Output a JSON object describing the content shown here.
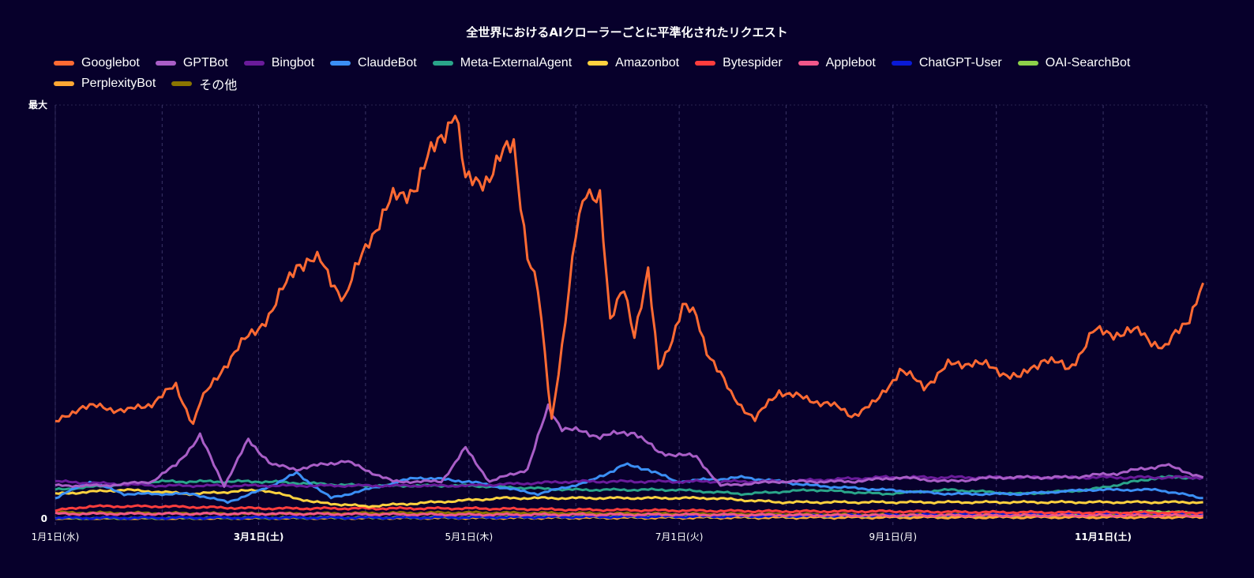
{
  "chart_data": {
    "type": "line",
    "title": "全世界におけるAIクローラーごとに平準化されたリクエスト",
    "xlabel": "",
    "ylabel": "",
    "x_unit": "day of year (0 = 1月1日)",
    "xlim": [
      0,
      334
    ],
    "ylim": [
      0,
      100
    ],
    "y_ticks": [
      {
        "value": 0,
        "label": "0"
      },
      {
        "value": 100,
        "label": "最大"
      }
    ],
    "x_ticks": [
      {
        "day": 0,
        "label": "1月1日(水)",
        "bold": false
      },
      {
        "day": 59,
        "label": "3月1日(土)",
        "bold": true
      },
      {
        "day": 120,
        "label": "5月1日(木)",
        "bold": false
      },
      {
        "day": 181,
        "label": "7月1日(火)",
        "bold": false
      },
      {
        "day": 243,
        "label": "9月1日(月)",
        "bold": false
      },
      {
        "day": 304,
        "label": "11月1日(土)",
        "bold": true
      }
    ],
    "minor_grid_days": [
      31,
      90,
      151,
      212,
      273,
      334
    ],
    "legend_position": "top-left",
    "series": [
      {
        "name": "Googlebot",
        "color": "#ff6a33",
        "points": [
          [
            0,
            23
          ],
          [
            7,
            27
          ],
          [
            14,
            27
          ],
          [
            21,
            26
          ],
          [
            28,
            28
          ],
          [
            35,
            32
          ],
          [
            40,
            23
          ],
          [
            42,
            28
          ],
          [
            49,
            37
          ],
          [
            56,
            44
          ],
          [
            63,
            50
          ],
          [
            70,
            62
          ],
          [
            77,
            62
          ],
          [
            84,
            53
          ],
          [
            91,
            68
          ],
          [
            98,
            77
          ],
          [
            105,
            81
          ],
          [
            112,
            93
          ],
          [
            116,
            99
          ],
          [
            119,
            81
          ],
          [
            126,
            83
          ],
          [
            133,
            91
          ],
          [
            137,
            64
          ],
          [
            140,
            55
          ],
          [
            144,
            24
          ],
          [
            147,
            42
          ],
          [
            151,
            68
          ],
          [
            154,
            79
          ],
          [
            158,
            79
          ],
          [
            161,
            47
          ],
          [
            165,
            56
          ],
          [
            168,
            45
          ],
          [
            172,
            59
          ],
          [
            175,
            36
          ],
          [
            179,
            44
          ],
          [
            182,
            51
          ],
          [
            186,
            49
          ],
          [
            189,
            41
          ],
          [
            196,
            30
          ],
          [
            203,
            24
          ],
          [
            210,
            31
          ],
          [
            217,
            29
          ],
          [
            224,
            28
          ],
          [
            231,
            25
          ],
          [
            238,
            28
          ],
          [
            245,
            36
          ],
          [
            252,
            32
          ],
          [
            259,
            37
          ],
          [
            266,
            38
          ],
          [
            273,
            36
          ],
          [
            280,
            34
          ],
          [
            287,
            39
          ],
          [
            294,
            36
          ],
          [
            301,
            45
          ],
          [
            308,
            45
          ],
          [
            315,
            45
          ],
          [
            322,
            41
          ],
          [
            329,
            49
          ],
          [
            333,
            57
          ]
        ]
      },
      {
        "name": "GPTBot",
        "color": "#a95ec7",
        "points": [
          [
            0,
            8
          ],
          [
            14,
            8
          ],
          [
            28,
            9
          ],
          [
            35,
            13
          ],
          [
            42,
            20
          ],
          [
            49,
            8
          ],
          [
            56,
            19
          ],
          [
            63,
            13
          ],
          [
            70,
            12
          ],
          [
            84,
            14
          ],
          [
            98,
            9
          ],
          [
            112,
            9
          ],
          [
            119,
            17
          ],
          [
            126,
            9
          ],
          [
            137,
            12
          ],
          [
            143,
            27
          ],
          [
            147,
            22
          ],
          [
            158,
            20
          ],
          [
            168,
            21
          ],
          [
            175,
            16
          ],
          [
            186,
            15
          ],
          [
            193,
            8
          ],
          [
            210,
            9
          ],
          [
            231,
            9
          ],
          [
            245,
            10
          ],
          [
            259,
            9
          ],
          [
            273,
            10
          ],
          [
            294,
            10
          ],
          [
            308,
            11
          ],
          [
            322,
            13
          ],
          [
            333,
            10
          ]
        ]
      },
      {
        "name": "Bingbot",
        "color": "#6a1b9a",
        "points": [
          [
            0,
            9
          ],
          [
            30,
            8
          ],
          [
            60,
            8
          ],
          [
            90,
            8
          ],
          [
            120,
            8
          ],
          [
            150,
            9
          ],
          [
            180,
            9
          ],
          [
            210,
            9
          ],
          [
            240,
            10
          ],
          [
            270,
            10
          ],
          [
            300,
            10
          ],
          [
            333,
            10
          ]
        ]
      },
      {
        "name": "ClaudeBot",
        "color": "#3b8ff5",
        "points": [
          [
            0,
            5
          ],
          [
            10,
            9
          ],
          [
            20,
            6
          ],
          [
            40,
            6
          ],
          [
            50,
            4
          ],
          [
            60,
            7
          ],
          [
            70,
            11
          ],
          [
            80,
            5
          ],
          [
            95,
            8
          ],
          [
            105,
            10
          ],
          [
            120,
            9
          ],
          [
            140,
            6
          ],
          [
            155,
            9
          ],
          [
            165,
            13
          ],
          [
            172,
            12
          ],
          [
            180,
            9
          ],
          [
            200,
            10
          ],
          [
            220,
            8
          ],
          [
            240,
            7
          ],
          [
            260,
            6
          ],
          [
            280,
            6
          ],
          [
            300,
            7
          ],
          [
            320,
            7
          ],
          [
            333,
            5
          ]
        ]
      },
      {
        "name": "Meta-ExternalAgent",
        "color": "#2aa58a",
        "points": [
          [
            0,
            7
          ],
          [
            30,
            9
          ],
          [
            60,
            9
          ],
          [
            90,
            8
          ],
          [
            120,
            8
          ],
          [
            150,
            7
          ],
          [
            180,
            7
          ],
          [
            200,
            6
          ],
          [
            220,
            7
          ],
          [
            240,
            6
          ],
          [
            260,
            7
          ],
          [
            280,
            6
          ],
          [
            300,
            7
          ],
          [
            320,
            10
          ],
          [
            333,
            10
          ]
        ]
      },
      {
        "name": "Amazonbot",
        "color": "#ffd23f",
        "points": [
          [
            0,
            6
          ],
          [
            20,
            7
          ],
          [
            40,
            6
          ],
          [
            60,
            7
          ],
          [
            75,
            4
          ],
          [
            90,
            3
          ],
          [
            110,
            4
          ],
          [
            130,
            5
          ],
          [
            150,
            5
          ],
          [
            170,
            5
          ],
          [
            190,
            5
          ],
          [
            210,
            4
          ],
          [
            240,
            4
          ],
          [
            270,
            4
          ],
          [
            300,
            4
          ],
          [
            333,
            4
          ]
        ]
      },
      {
        "name": "Bytespider",
        "color": "#ff3d3d",
        "points": [
          [
            0,
            2
          ],
          [
            10,
            3
          ],
          [
            30,
            3
          ],
          [
            60,
            2.5
          ],
          [
            90,
            2.5
          ],
          [
            120,
            2.5
          ],
          [
            150,
            2.2
          ],
          [
            180,
            2
          ],
          [
            210,
            1.8
          ],
          [
            240,
            1.8
          ],
          [
            270,
            1.6
          ],
          [
            300,
            1.5
          ],
          [
            333,
            1.5
          ]
        ]
      },
      {
        "name": "Applebot",
        "color": "#f0578a",
        "points": [
          [
            0,
            1.2
          ],
          [
            60,
            1.2
          ],
          [
            120,
            1
          ],
          [
            180,
            1
          ],
          [
            240,
            0.8
          ],
          [
            300,
            0.8
          ],
          [
            333,
            0.8
          ]
        ]
      },
      {
        "name": "ChatGPT-User",
        "color": "#0a1ad6",
        "points": [
          [
            0,
            0.2
          ],
          [
            100,
            0.3
          ],
          [
            200,
            0.6
          ],
          [
            260,
            1
          ],
          [
            300,
            1.2
          ],
          [
            333,
            1.3
          ]
        ]
      },
      {
        "name": "OAI-SearchBot",
        "color": "#8dd14a",
        "points": [
          [
            0,
            0.1
          ],
          [
            100,
            0.3
          ],
          [
            150,
            0.5
          ],
          [
            200,
            0.6
          ],
          [
            250,
            0.8
          ],
          [
            300,
            1
          ],
          [
            320,
            1.8
          ],
          [
            333,
            1.2
          ]
        ]
      },
      {
        "name": "PerplexityBot",
        "color": "#ffa834",
        "points": [
          [
            0,
            0
          ],
          [
            100,
            0.2
          ],
          [
            200,
            0.3
          ],
          [
            333,
            0.4
          ]
        ]
      },
      {
        "name": "その他",
        "color": "#8a7500",
        "points": [
          [
            0,
            1.5
          ],
          [
            60,
            1.2
          ],
          [
            120,
            1.5
          ],
          [
            180,
            1.2
          ],
          [
            240,
            1
          ],
          [
            300,
            1
          ],
          [
            333,
            1
          ]
        ]
      }
    ]
  }
}
